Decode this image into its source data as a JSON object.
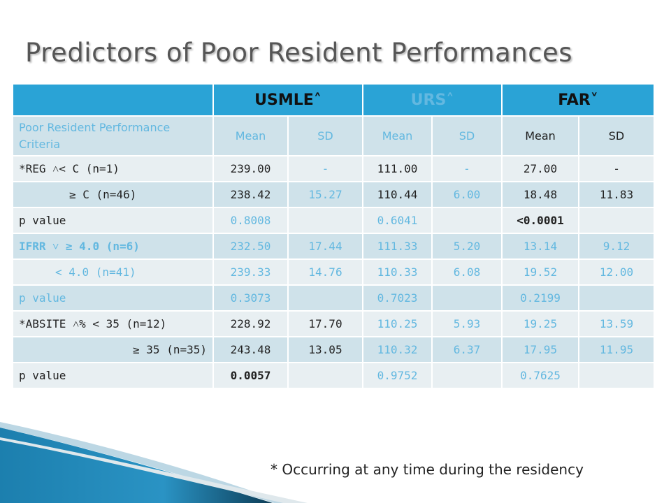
{
  "title": "Predictors of Poor Resident Performances",
  "header": {
    "usmle": "USMLE˄",
    "urs": "URS˄",
    "far": "FAR˅"
  },
  "subheader": {
    "criteria": "Poor Resident Performance Criteria",
    "mean": "Mean",
    "sd": "SD"
  },
  "rows": [
    {
      "label": "*REG ˄< C (n=1)",
      "c": [
        "239.00",
        "-",
        "111.00",
        "-",
        "27.00",
        "-"
      ]
    },
    {
      "label": "≥ C (n=46)",
      "c": [
        "238.42",
        "15.27",
        "110.44",
        "6.00",
        "18.48",
        "11.83"
      ]
    },
    {
      "label": "p value",
      "c": [
        "0.8008",
        "",
        "0.6041",
        "",
        "<0.0001",
        ""
      ]
    },
    {
      "label": "IFRR ˅ ≥ 4.0 (n=6)",
      "c": [
        "232.50",
        "17.44",
        "111.33",
        "5.20",
        "13.14",
        "9.12"
      ]
    },
    {
      "label": "< 4.0 (n=41)",
      "c": [
        "239.33",
        "14.76",
        "110.33",
        "6.08",
        "19.52",
        "12.00"
      ]
    },
    {
      "label": "p value",
      "c": [
        "0.3073",
        "",
        "0.7023",
        "",
        "0.2199",
        ""
      ]
    },
    {
      "label": "*ABSITE ˄% < 35 (n=12)",
      "c": [
        "228.92",
        "17.70",
        "110.25",
        "5.93",
        "19.25",
        "13.59"
      ]
    },
    {
      "label": "≥ 35 (n=35)",
      "c": [
        "243.48",
        "13.05",
        "110.32",
        "6.37",
        "17.95",
        "11.95"
      ]
    },
    {
      "label": "p value",
      "c": [
        "0.0057",
        "",
        "0.9752",
        "",
        "0.7625",
        ""
      ]
    }
  ],
  "footnote": "* Occurring at any time during the residency",
  "colors": {
    "header_bg": "#2aa3d6",
    "light_row": "#e8eff2",
    "dark_row": "#cfe2ea",
    "accent_text": "#63b8e0"
  }
}
